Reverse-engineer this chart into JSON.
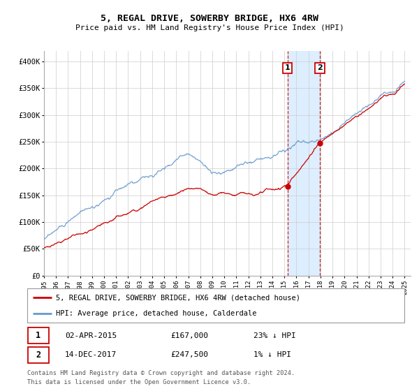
{
  "title": "5, REGAL DRIVE, SOWERBY BRIDGE, HX6 4RW",
  "subtitle": "Price paid vs. HM Land Registry's House Price Index (HPI)",
  "background_color": "#ffffff",
  "grid_color": "#cccccc",
  "highlight_color": "#ddeeff",
  "sale1_x": 2015.25,
  "sale1_y": 167000,
  "sale1_date": "02-APR-2015",
  "sale1_price": 167000,
  "sale1_label": "23% ↓ HPI",
  "sale2_x": 2017.95,
  "sale2_y": 247500,
  "sale2_date": "14-DEC-2017",
  "sale2_price": 247500,
  "sale2_label": "1% ↓ HPI",
  "red_color": "#cc0000",
  "blue_color": "#6699cc",
  "legend1": "5, REGAL DRIVE, SOWERBY BRIDGE, HX6 4RW (detached house)",
  "legend2": "HPI: Average price, detached house, Calderdale",
  "footer1": "Contains HM Land Registry data © Crown copyright and database right 2024.",
  "footer2": "This data is licensed under the Open Government Licence v3.0.",
  "yticks": [
    0,
    50000,
    100000,
    150000,
    200000,
    250000,
    300000,
    350000,
    400000
  ],
  "ylabels": [
    "£0",
    "£50K",
    "£100K",
    "£150K",
    "£200K",
    "£250K",
    "£300K",
    "£350K",
    "£400K"
  ],
  "xmin": 1995,
  "xmax": 2025.5,
  "ymin": 0,
  "ymax": 420000
}
